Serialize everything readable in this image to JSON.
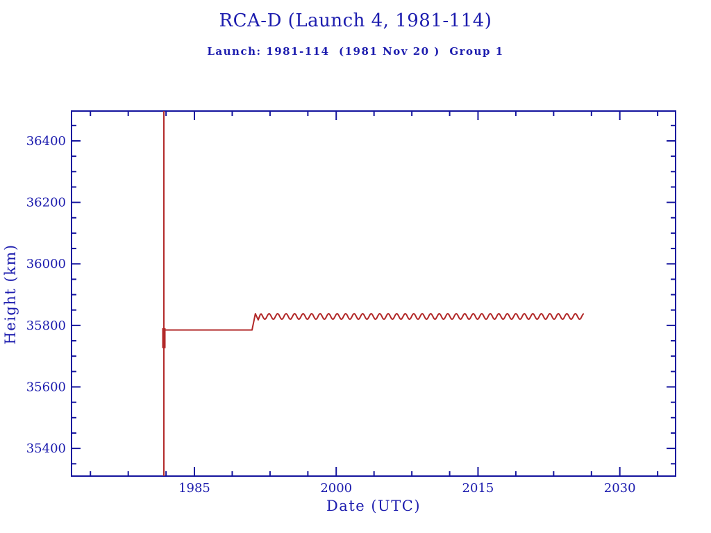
{
  "page": {
    "background": "#ffffff"
  },
  "chart_data": {
    "type": "line",
    "title": "RCA-D (Launch 4, 1981-114)",
    "subtitle": "Launch: 1981-114  (1981 Nov 20 )  Group 1",
    "xlabel": "Date (UTC)",
    "ylabel": "Height (km)",
    "xlim": [
      1972,
      2035.9
    ],
    "ylim": [
      35310,
      36497
    ],
    "x_major_ticks": [
      1985,
      2000,
      2015,
      2030
    ],
    "x_minor_ticks": [
      1974,
      1978,
      1982,
      1989,
      1993,
      1997,
      2004,
      2008,
      2012,
      2019,
      2023,
      2027,
      2034
    ],
    "y_major_ticks": [
      35400,
      35600,
      35800,
      36000,
      36200,
      36400
    ],
    "y_minor_ticks": [
      35350,
      35450,
      35500,
      35550,
      35650,
      35700,
      35750,
      35850,
      35900,
      35950,
      36050,
      36100,
      36150,
      36250,
      36300,
      36350,
      36450
    ],
    "grid": false,
    "legend_position": "none",
    "axis_color": "#15159e",
    "text_color": "#1c1cae",
    "line_color": "#b22828",
    "series": [
      {
        "name": "Height",
        "color": "#b22828",
        "description": "Orbit height vs date: launch transfer spike in late 1981 spanning full axis range, station-kept flat at ~35785 km until mid-1991, then drift orbit at ~35829 km mean with ~9 km amplitude oscillation ending ~2026.2",
        "segments": [
          {
            "kind": "vline",
            "x": 1981.77,
            "from": 35310,
            "to": 36497,
            "width": 2
          },
          {
            "kind": "vline",
            "x": 1981.77,
            "from": 35726,
            "to": 35791,
            "width": 5
          },
          {
            "kind": "polyline",
            "points": [
              [
                1981.77,
                35785
              ],
              [
                1991.1,
                35785
              ],
              [
                1991.45,
                35838
              ],
              [
                1991.75,
                35818
              ],
              [
                1992.0,
                35838
              ]
            ]
          },
          {
            "kind": "wave",
            "from": 1992.0,
            "to": 2026.2,
            "mean": 35829,
            "amplitude": 9,
            "period": 0.9
          }
        ]
      }
    ]
  }
}
